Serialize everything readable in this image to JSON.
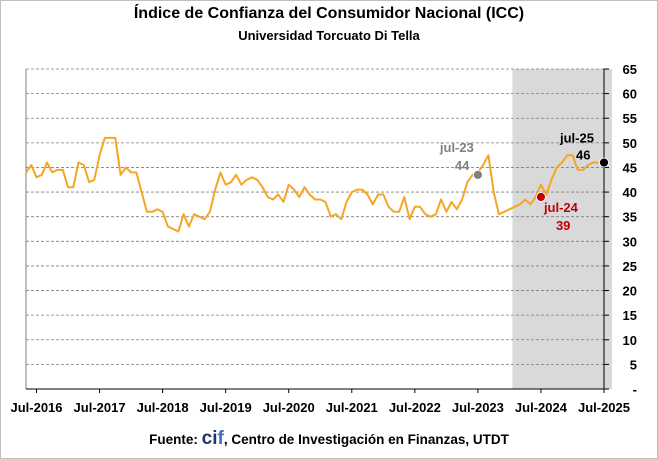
{
  "chart_data": {
    "type": "line",
    "title": "Índice de Confianza del Consumidor Nacional (ICC)",
    "subtitle": "Universidad Torcuato Di Tella",
    "y_ticks": [
      "-",
      "5",
      "10",
      "15",
      "20",
      "25",
      "30",
      "35",
      "40",
      "45",
      "50",
      "55",
      "60",
      "65"
    ],
    "ylim": [
      0,
      65
    ],
    "x_ticks": [
      "Jul-2016",
      "Jul-2017",
      "Jul-2018",
      "Jul-2019",
      "Jul-2020",
      "Jul-2021",
      "Jul-2022",
      "Jul-2023",
      "Jul-2024",
      "Jul-2025"
    ],
    "x_start": "2016-05",
    "x_end": "2025-07",
    "grid": "horizontal dashed",
    "line_color": "#f5a623",
    "shaded_period": {
      "from": "2024-01",
      "to": "2025-07",
      "color": "#d9d9d9"
    },
    "series": [
      {
        "values": [
          44.0,
          45.5,
          43.0,
          43.5,
          46.0,
          44.0,
          44.5,
          44.5,
          41.0,
          41.0,
          46.0,
          45.5,
          42.0,
          42.5,
          47.5,
          51.0,
          51.0,
          51.0,
          43.5,
          45.0,
          44.0,
          44.0,
          40.0,
          36.0,
          36.0,
          36.5,
          36.0,
          33.0,
          32.5,
          32.0,
          35.5,
          33.0,
          35.5,
          35.0,
          34.5,
          36.0,
          40.5,
          44.0,
          41.5,
          42.0,
          43.5,
          41.5,
          42.5,
          43.0,
          42.5,
          41.0,
          39.0,
          38.5,
          39.5,
          38.0,
          41.5,
          40.5,
          39.0,
          41.0,
          39.5,
          38.5,
          38.5,
          38.0,
          35.0,
          35.5,
          34.5,
          38.0,
          40.0,
          40.5,
          40.5,
          39.5,
          37.5,
          39.5,
          39.5,
          37.0,
          36.0,
          36.0,
          39.0,
          34.5,
          37.0,
          37.0,
          35.5,
          35.0,
          35.5,
          38.5,
          36.0,
          38.0,
          36.5,
          38.5,
          42.0,
          43.5,
          44.0,
          45.5,
          47.5,
          40.0,
          35.5,
          36.0,
          36.5,
          37.0,
          37.5,
          38.5,
          37.5,
          39.0,
          41.5,
          39.5,
          42.5,
          45.0,
          46.0,
          47.5,
          47.5,
          44.5,
          44.5,
          45.5,
          46.0,
          46.0
        ]
      }
    ],
    "highlights": [
      {
        "x": "2023-07",
        "value": 43.5,
        "label": "jul-23",
        "value_label": "44",
        "color": "#808080"
      },
      {
        "x": "2024-07",
        "value": 39.0,
        "label": "jul-24",
        "value_label": "39",
        "color": "#c00000"
      },
      {
        "x": "2025-07",
        "value": 46.0,
        "label": "jul-25",
        "value_label": "46",
        "color": "#000000"
      }
    ]
  },
  "footer": {
    "prefix": "Fuente: ",
    "brand_c": "ci",
    "brand_f": "f",
    "text": ", Centro de Investigación en Finanzas, UTDT"
  }
}
